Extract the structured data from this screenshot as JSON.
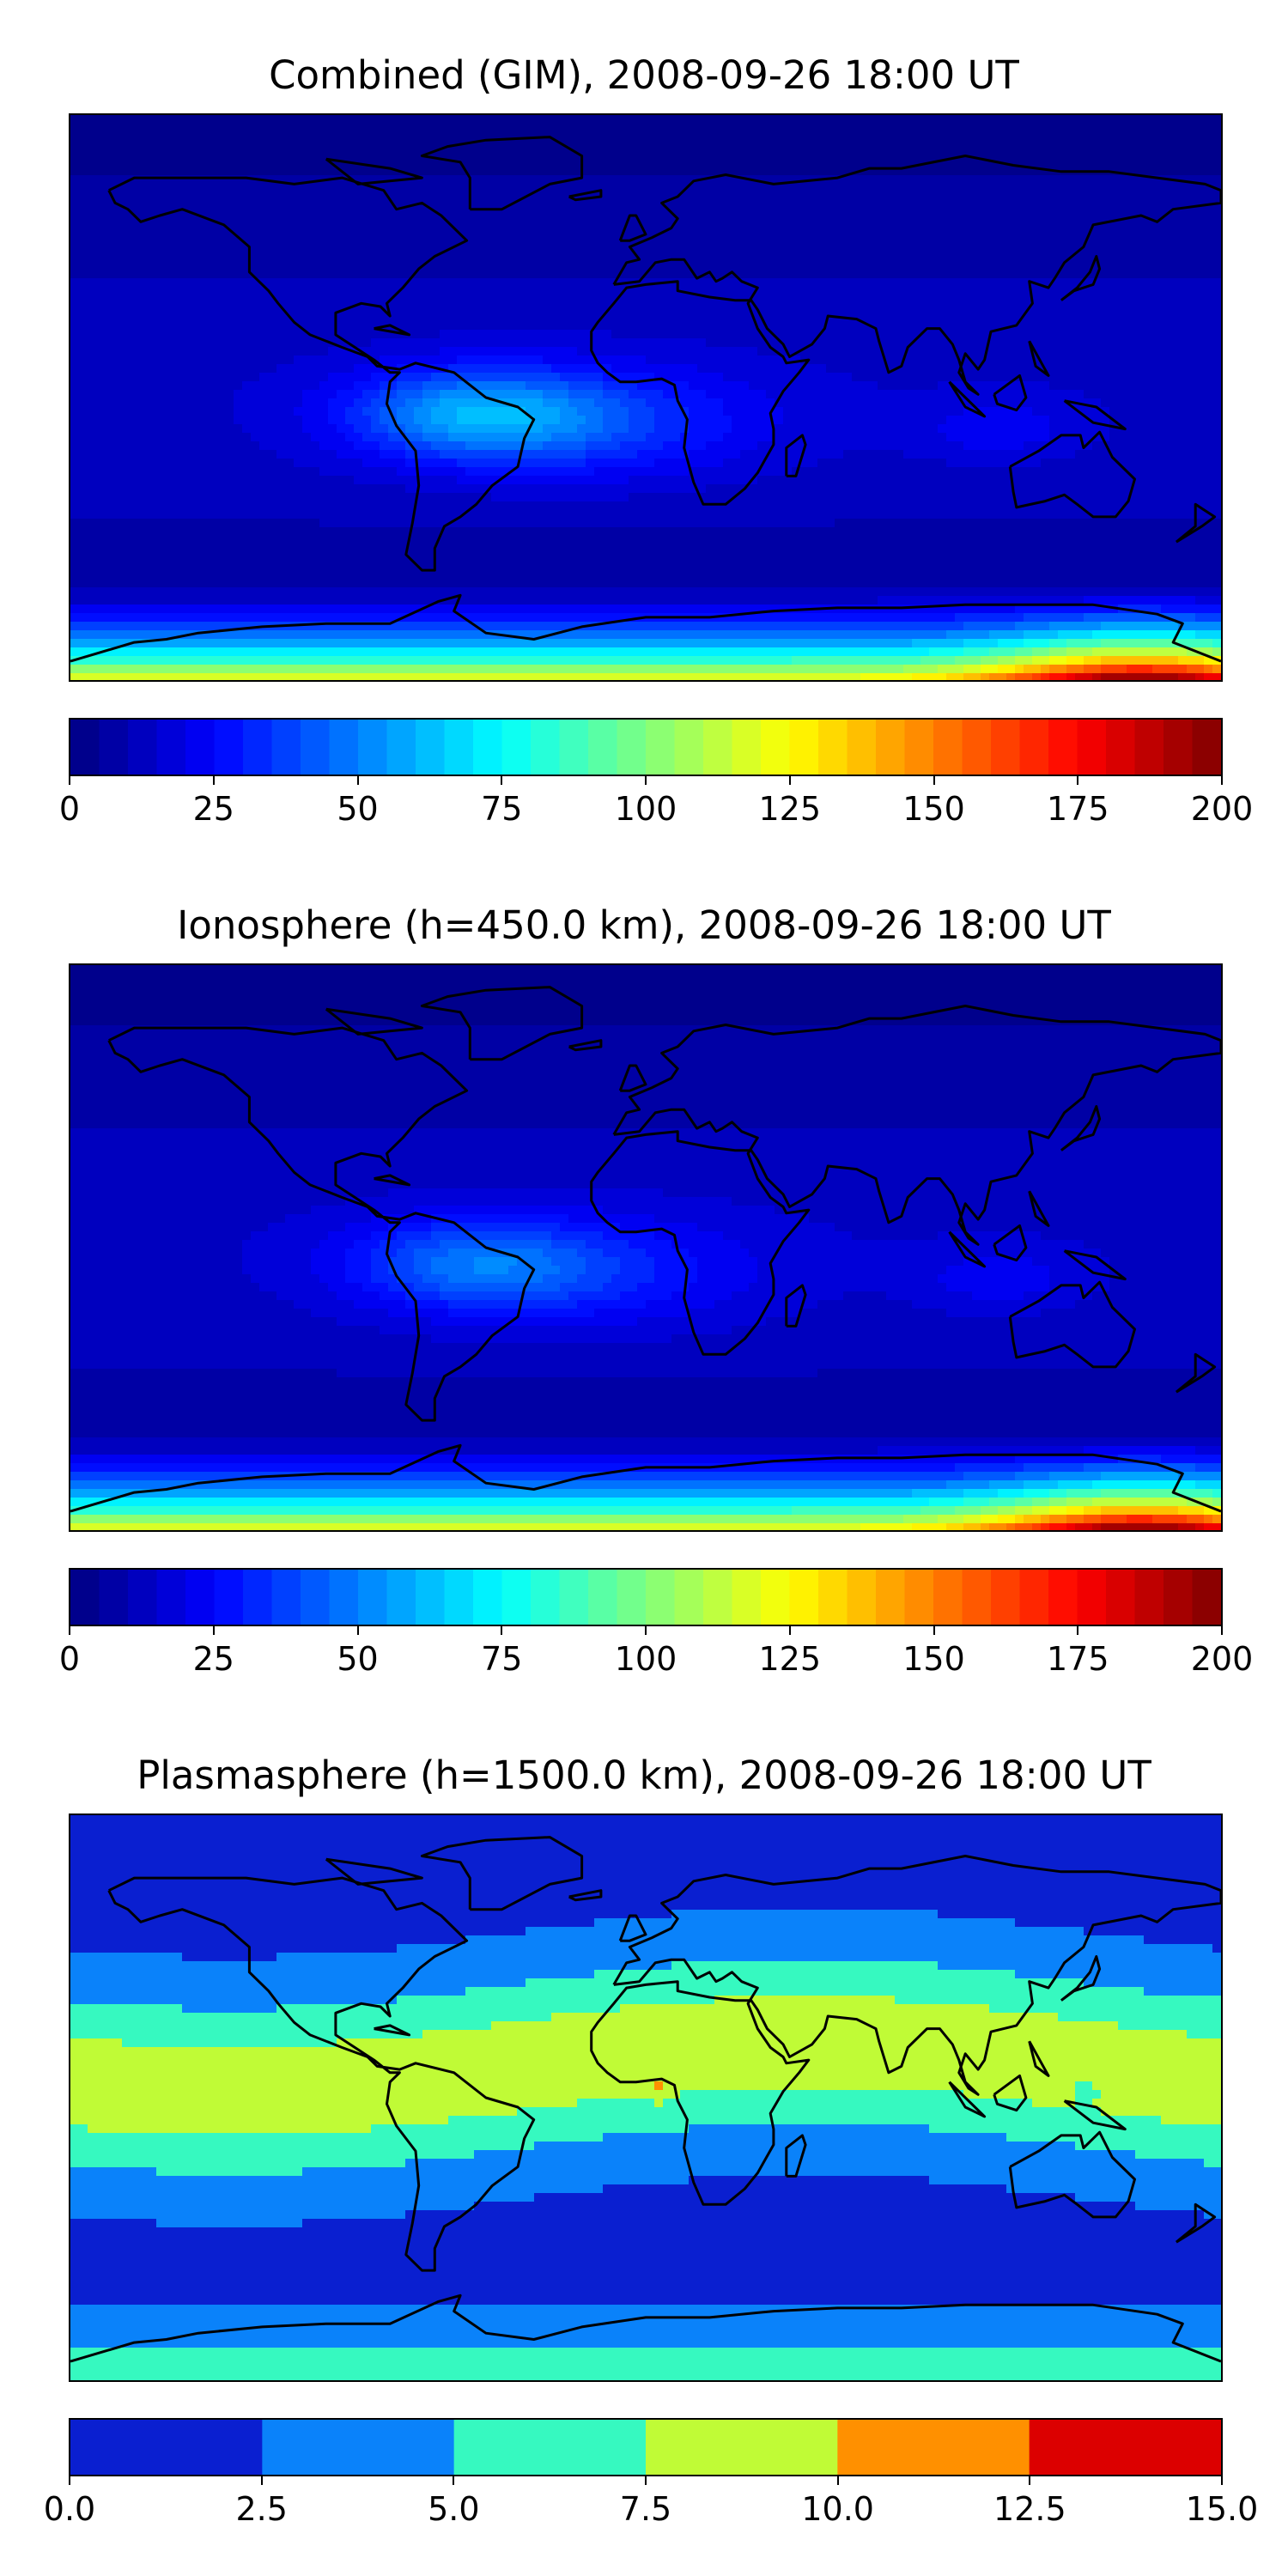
{
  "chart_data": [
    {
      "type": "heatmap",
      "title": "Combined (GIM), 2008-09-26 18:00 UT",
      "colormap": "jet",
      "colorbar": {
        "range": [
          0,
          200
        ],
        "levels": 40,
        "ticks": [
          "0",
          "25",
          "50",
          "75",
          "100",
          "125",
          "150",
          "175",
          "200"
        ]
      },
      "features": [
        {
          "region": "polar ocean, high southern latitudes (around 160E)",
          "value": 190
        },
        {
          "region": "southern high latitudes band",
          "value": 140
        },
        {
          "region": "tropical South America / Atlantic",
          "value": 40
        },
        {
          "region": "mid latitudes",
          "value": 15
        },
        {
          "region": "northern high latitudes",
          "value": 5
        }
      ]
    },
    {
      "type": "heatmap",
      "title": "Ionosphere  (h=450.0 km), 2008-09-26 18:00 UT",
      "colormap": "jet",
      "colorbar": {
        "range": [
          0,
          200
        ],
        "levels": 40,
        "ticks": [
          "0",
          "25",
          "50",
          "75",
          "100",
          "125",
          "150",
          "175",
          "200"
        ]
      },
      "features": [
        {
          "region": "polar ocean, high southern latitudes (around 160E)",
          "value": 185
        },
        {
          "region": "southern high latitudes band",
          "value": 130
        },
        {
          "region": "tropical South America",
          "value": 30
        },
        {
          "region": "mid latitudes",
          "value": 10
        },
        {
          "region": "northern high latitudes",
          "value": 3
        }
      ]
    },
    {
      "type": "heatmap",
      "title": "Plasmasphere (h=1500.0 km), 2008-09-26 18:00 UT",
      "colormap": "jet",
      "colorbar": {
        "range": [
          0,
          15
        ],
        "levels": 6,
        "ticks": [
          "0.0",
          "2.5",
          "5.0",
          "7.5",
          "10.0",
          "12.5",
          "15.0"
        ]
      },
      "features": [
        {
          "region": "equatorial band Africa / Asia",
          "value": 9
        },
        {
          "region": "west Africa spot",
          "value": 11
        },
        {
          "region": "low latitudes band",
          "value": 6
        },
        {
          "region": "mid latitudes",
          "value": 3.5
        },
        {
          "region": "high latitudes",
          "value": 1.5
        }
      ]
    }
  ],
  "colors": {
    "jet": [
      "#00007f",
      "#0000ff",
      "#007fff",
      "#00ffff",
      "#7fff7f",
      "#ffff00",
      "#ff7f00",
      "#ff0000",
      "#7f0000"
    ],
    "discrete": [
      "#0a1fd0",
      "#0a82fa",
      "#36f9c0",
      "#c0fb36",
      "#ff9000",
      "#dc0000"
    ],
    "coast": "#000000"
  }
}
